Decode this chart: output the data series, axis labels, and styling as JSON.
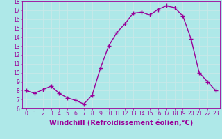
{
  "hours": [
    0,
    1,
    2,
    3,
    4,
    5,
    6,
    7,
    8,
    9,
    10,
    11,
    12,
    13,
    14,
    15,
    16,
    17,
    18,
    19,
    20,
    21,
    22,
    23
  ],
  "values": [
    8.0,
    7.7,
    8.1,
    8.5,
    7.7,
    7.2,
    6.9,
    6.5,
    7.5,
    10.5,
    13.0,
    14.5,
    15.5,
    16.7,
    16.8,
    16.5,
    17.1,
    17.5,
    17.3,
    16.4,
    13.8,
    10.0,
    9.0,
    8.0
  ],
  "line_color": "#990099",
  "marker": "+",
  "marker_size": 4,
  "line_width": 1.0,
  "bg_color": "#aee8e8",
  "grid_color": "#bbdddd",
  "xlabel": "Windchill (Refroidissement éolien,°C)",
  "xlabel_color": "#990099",
  "xlabel_fontsize": 7,
  "tick_color": "#990099",
  "tick_labelsize": 5.5,
  "ylim": [
    6,
    18
  ],
  "yticks": [
    6,
    7,
    8,
    9,
    10,
    11,
    12,
    13,
    14,
    15,
    16,
    17,
    18
  ],
  "xlim": [
    -0.5,
    23.5
  ],
  "xticks": [
    0,
    1,
    2,
    3,
    4,
    5,
    6,
    7,
    8,
    9,
    10,
    11,
    12,
    13,
    14,
    15,
    16,
    17,
    18,
    19,
    20,
    21,
    22,
    23
  ]
}
